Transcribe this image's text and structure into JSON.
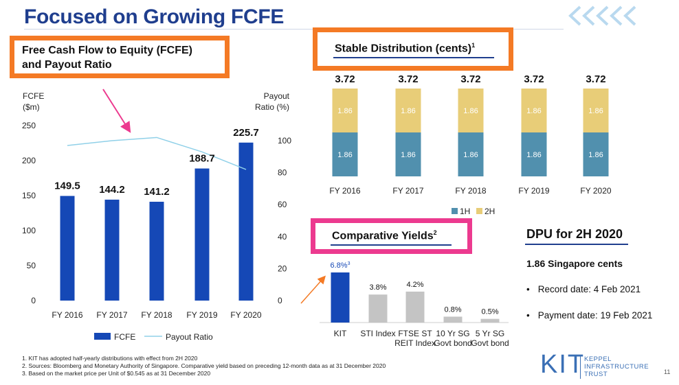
{
  "page": {
    "title": "Focused on Growing FCFE",
    "page_number": "11"
  },
  "fcfe_section": {
    "heading_line1": "Free Cash Flow to Equity (FCFE)",
    "heading_line2": "and Payout Ratio"
  },
  "distribution_section": {
    "heading": "Stable Distribution (cents)",
    "heading_sup": "1"
  },
  "yields_section": {
    "heading": "Comparative Yields",
    "heading_sup": "2"
  },
  "dpu": {
    "heading": "DPU for 2H 2020",
    "amount": "1.86 Singapore cents",
    "bullets": [
      "Record date: 4 Feb 2021",
      "Payment date: 19 Feb 2021"
    ]
  },
  "footnotes": [
    "1. KIT has adopted half-yearly distributions with effect from 2H 2020",
    "2. Sources: Bloomberg and Monetary Authority of Singapore. Comparative yield based on preceding 12-month data as at 31 December 2020",
    "3. Based on the market price per Unit of $0.545 as at 31 December 2020"
  ],
  "logo": {
    "mark": "KIT",
    "name_lines": [
      "KEPPEL",
      "INFRASTRUCTURE",
      "TRUST"
    ]
  },
  "colors": {
    "title": "#1f3e8e",
    "highlight_orange": "#f47a25",
    "highlight_pink": "#ec3a8f",
    "fcfe_bar": "#1548b6",
    "payout_line": "#8fd0e8",
    "dist_1h": "#5190ae",
    "dist_2h": "#e8cd78",
    "kit_bar": "#1548b6",
    "other_bar": "#c4c4c4"
  },
  "chart_data": [
    {
      "type": "bar",
      "categories": [
        "FY 2016",
        "FY 2017",
        "FY 2018",
        "FY 2019",
        "FY 2020"
      ],
      "series": [
        {
          "name": "FCFE",
          "values": [
            149.5,
            144.2,
            141.2,
            188.7,
            225.7
          ],
          "labels": [
            "149.5",
            "144.2",
            "141.2",
            "188.7",
            "225.7"
          ]
        },
        {
          "name": "Payout Ratio",
          "type": "line",
          "values": [
            97,
            100,
            102,
            93,
            82
          ]
        }
      ],
      "ylabel": "FCFE ($m)",
      "ylabel_lines": [
        "FCFE",
        "($m)"
      ],
      "y2label": "Payout Ratio (%)",
      "y2label_lines": [
        "Payout",
        "Ratio (%)"
      ],
      "ylim": [
        0,
        250
      ],
      "yticks": [
        0,
        50,
        100,
        150,
        200,
        250
      ],
      "y2lim": [
        0,
        100
      ],
      "y2ticks": [
        0,
        20,
        40,
        60,
        80,
        100
      ],
      "legend": "bottom",
      "grid": false
    },
    {
      "type": "bar",
      "stacked": true,
      "categories": [
        "FY 2016",
        "FY 2017",
        "FY 2018",
        "FY 2019",
        "FY 2020"
      ],
      "series": [
        {
          "name": "1H",
          "values": [
            1.86,
            1.86,
            1.86,
            1.86,
            1.86
          ]
        },
        {
          "name": "2H",
          "values": [
            1.86,
            1.86,
            1.86,
            1.86,
            1.86
          ]
        }
      ],
      "totals": [
        "3.72",
        "3.72",
        "3.72",
        "3.72",
        "3.72"
      ],
      "segment_label": "1.86",
      "legend": "bottom",
      "grid": false
    },
    {
      "type": "bar",
      "categories": [
        "KIT",
        "STI Index",
        "FTSE ST REIT Index",
        "10 Yr SG Govt bond",
        "5 Yr SG Govt bond"
      ],
      "category_lines": [
        [
          "KIT"
        ],
        [
          "STI Index"
        ],
        [
          "FTSE ST",
          "REIT Index"
        ],
        [
          "10 Yr SG",
          "Govt bond"
        ],
        [
          "5 Yr SG",
          "Govt bond"
        ]
      ],
      "values": [
        6.8,
        3.8,
        4.2,
        0.8,
        0.5
      ],
      "labels": [
        "6.8%",
        "3.8%",
        "4.2%",
        "0.8%",
        "0.5%"
      ],
      "kit_label_sup": "3",
      "ylim": [
        0,
        7.5
      ],
      "grid": false
    }
  ]
}
